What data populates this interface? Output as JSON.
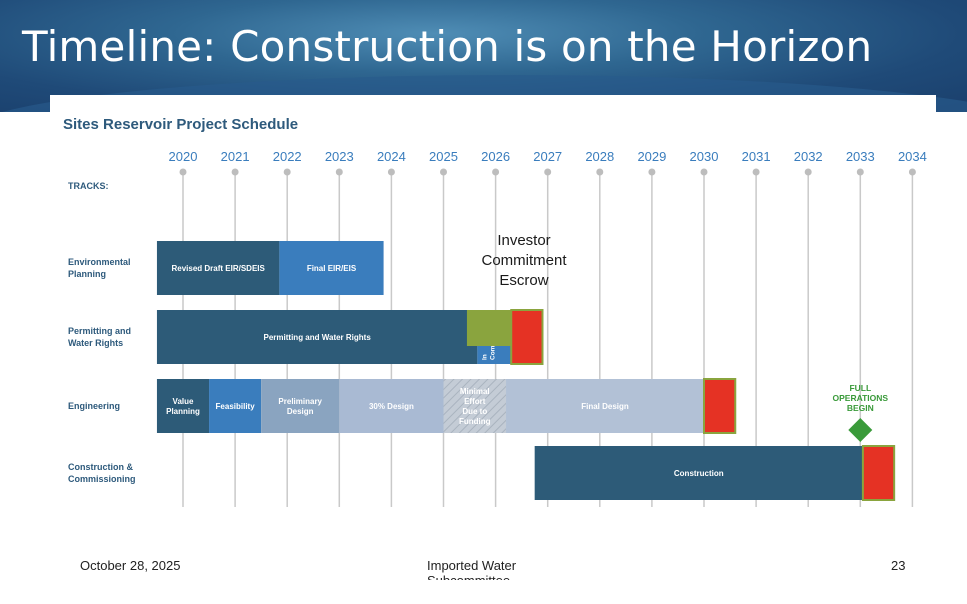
{
  "slide": {
    "title": "Timeline: Construction is on the Horizon",
    "footer_date": "October 28, 2025",
    "footer_center": "Imported Water Subcommittee",
    "page_number": "23"
  },
  "chart_data": {
    "type": "gantt",
    "title": "Sites Reservoir Project Schedule",
    "track_header": "TRACKS:",
    "years": [
      "2020",
      "2021",
      "2022",
      "2023",
      "2024",
      "2025",
      "2026",
      "2027",
      "2028",
      "2029",
      "2030",
      "2031",
      "2032",
      "2033",
      "2034"
    ],
    "tracks": [
      {
        "label": [
          "Environmental",
          "Planning"
        ],
        "bars": [
          {
            "label": [
              "Revised Draft EIR/SDEIS"
            ],
            "start": 2019.5,
            "end": 2021.85,
            "color": "#2d5b78"
          },
          {
            "label": [
              "Final EIR/EIS"
            ],
            "start": 2021.85,
            "end": 2023.85,
            "color": "#3a7dbd"
          }
        ]
      },
      {
        "label": [
          "Permitting and",
          "Water Rights"
        ],
        "bars": [
          {
            "label": [
              "Permitting and Water Rights"
            ],
            "start": 2019.5,
            "end": 2025.65,
            "color": "#2d5b78"
          },
          {
            "label": [
              "In",
              "Com"
            ],
            "start": 2025.65,
            "end": 2026.3,
            "color": "#3a7dbd",
            "vertical_text": true
          },
          {
            "label": [],
            "start": 2025.45,
            "end": 2026.3,
            "color": "#8aa43e",
            "half": "top"
          },
          {
            "label": [],
            "start": 2026.3,
            "end": 2026.9,
            "color": "#e53224",
            "border": "#8aa43e"
          }
        ]
      },
      {
        "label": [
          "Engineering"
        ],
        "bars": [
          {
            "label": [
              "Value",
              "Planning"
            ],
            "start": 2019.5,
            "end": 2020.5,
            "color": "#2d5b78"
          },
          {
            "label": [
              "Feasibility"
            ],
            "start": 2020.5,
            "end": 2021.5,
            "color": "#3a7dbd"
          },
          {
            "label": [
              "Preliminary",
              "Design"
            ],
            "start": 2021.5,
            "end": 2023.0,
            "color": "#8aa4c0"
          },
          {
            "label": [
              "30% Design"
            ],
            "start": 2023.0,
            "end": 2025.0,
            "color": "#a9bad3"
          },
          {
            "label": [
              "Minimal",
              "Effort",
              "Due to",
              "Funding"
            ],
            "start": 2025.0,
            "end": 2026.2,
            "color": "#bcc6d2",
            "hatched": true
          },
          {
            "label": [
              "Final Design"
            ],
            "start": 2026.2,
            "end": 2030.0,
            "color": "#b2c1d6"
          },
          {
            "label": [],
            "start": 2030.0,
            "end": 2030.6,
            "color": "#e53224",
            "border": "#8aa43e"
          }
        ]
      },
      {
        "label": [
          "Construction &",
          "Commissioning"
        ],
        "bars": [
          {
            "label": [
              "Construction"
            ],
            "start": 2026.75,
            "end": 2033.05,
            "color": "#2d5b78"
          },
          {
            "label": [],
            "start": 2033.05,
            "end": 2033.65,
            "color": "#e53224",
            "border": "#8aa43e"
          }
        ]
      }
    ],
    "milestones": [
      {
        "label": [
          "FULL",
          "OPERATIONS",
          "BEGIN"
        ],
        "year": 2033.0,
        "color": "#3a9a3a"
      }
    ],
    "annotations": [
      {
        "text": [
          "Investor",
          "Commitment",
          "Escrow"
        ]
      }
    ]
  }
}
